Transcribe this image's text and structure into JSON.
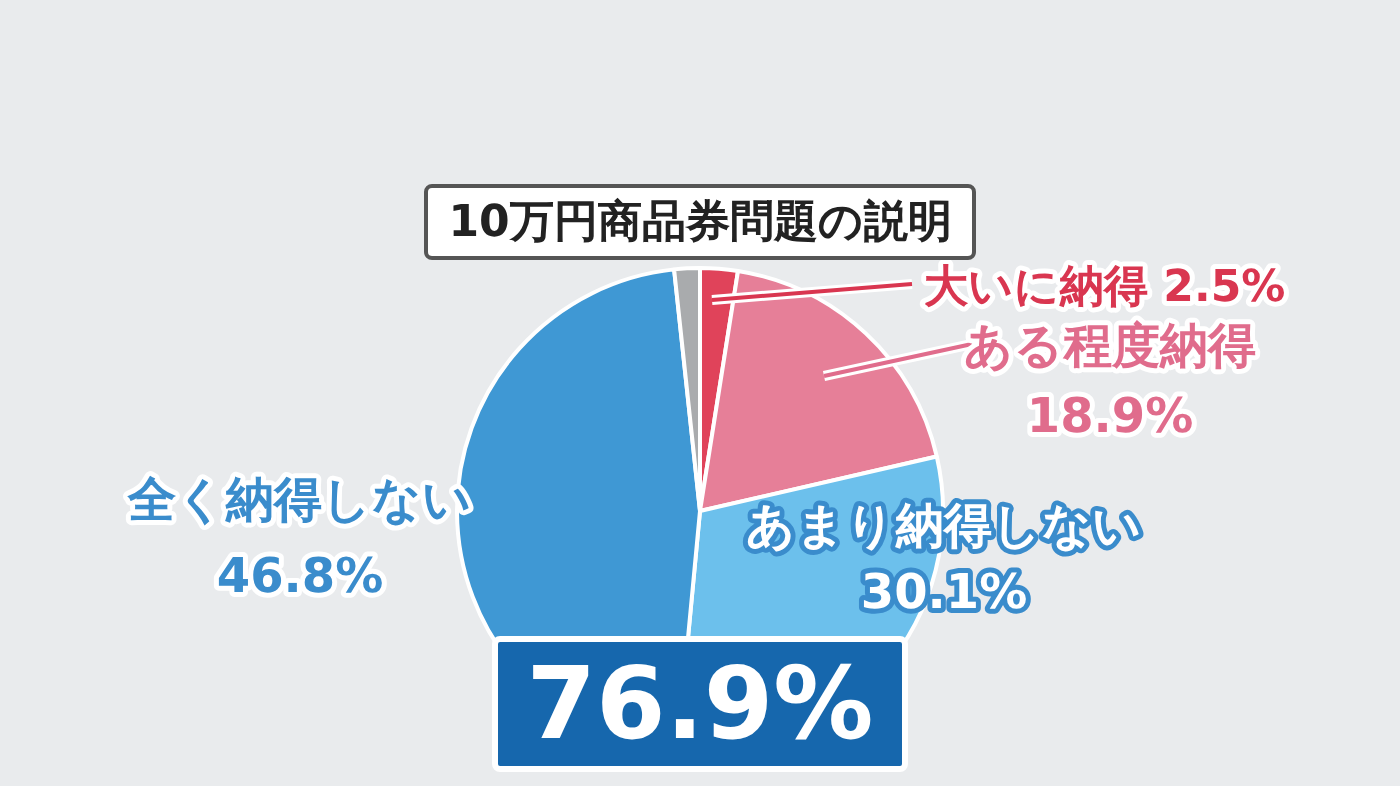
{
  "chart_data": {
    "type": "pie",
    "title": "10万円商品券問題の説明",
    "categories": [
      "大いに納得",
      "ある程度納得",
      "あまり納得しない",
      "全く納得しない",
      null
    ],
    "values": [
      2.5,
      18.9,
      30.1,
      46.8,
      1.7
    ],
    "colors": [
      "#e0435a",
      "#e67f98",
      "#6cc0ec",
      "#3f98d4",
      "#a9abad"
    ],
    "value_labels": [
      "2.5%",
      "18.9%",
      "30.1%",
      "46.8%",
      null
    ],
    "annotations": [
      "76.9%"
    ]
  }
}
